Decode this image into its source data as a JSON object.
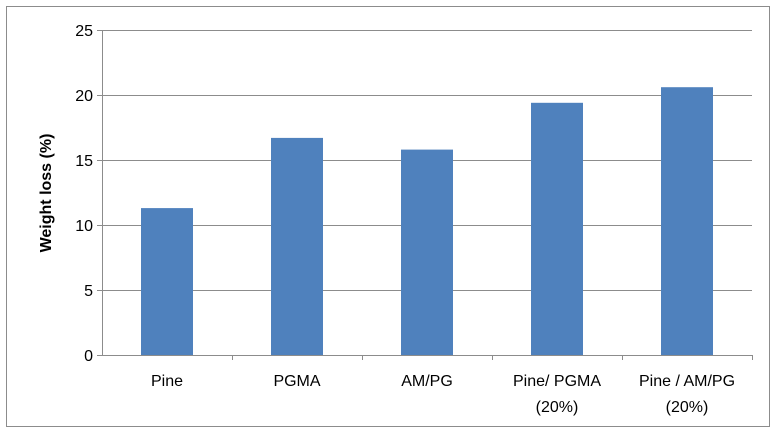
{
  "chart_data": {
    "type": "bar",
    "title": "",
    "xlabel": "",
    "ylabel": "Weight loss (%)",
    "categories": [
      [
        "Pine"
      ],
      [
        "PGMA"
      ],
      [
        "AM/PG"
      ],
      [
        "Pine/ PGMA",
        "(20%)"
      ],
      [
        "Pine / AM/PG",
        "(20%)"
      ]
    ],
    "values": [
      11.3,
      16.7,
      15.8,
      19.4,
      20.6
    ],
    "ylim": [
      0,
      25
    ],
    "yticks": [
      0,
      5,
      10,
      15,
      20,
      25
    ],
    "grid": true,
    "legend": "none",
    "bar_color": "#4f81bd",
    "grid_color": "#8c8c8c"
  }
}
